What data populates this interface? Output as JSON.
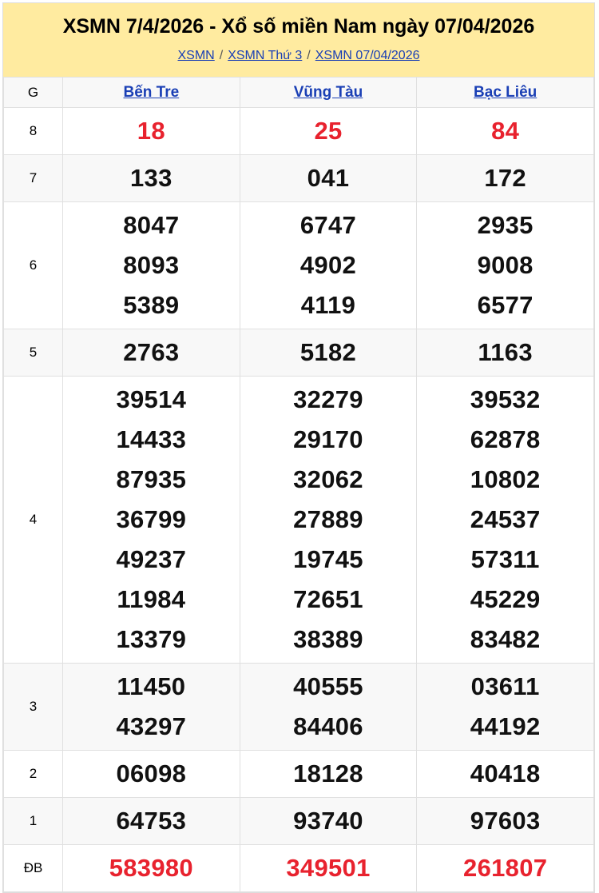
{
  "title": "XSMN 7/4/2026 - Xổ số miền Nam ngày 07/04/2026",
  "breadcrumb": [
    "XSMN",
    "XSMN Thứ 3",
    "XSMN 07/04/2026"
  ],
  "breadcrumb_separator": "/",
  "colors": {
    "header_bg": "#ffeba0",
    "link": "#1a3fb5",
    "highlight": "#e8222e"
  },
  "table": {
    "prize_header": "G",
    "provinces": [
      "Bến Tre",
      "Vũng Tàu",
      "Bạc Liêu"
    ],
    "rows": [
      {
        "prize": "8",
        "highlight": true,
        "values": [
          [
            "18"
          ],
          [
            "25"
          ],
          [
            "84"
          ]
        ]
      },
      {
        "prize": "7",
        "values": [
          [
            "133"
          ],
          [
            "041"
          ],
          [
            "172"
          ]
        ]
      },
      {
        "prize": "6",
        "values": [
          [
            "8047",
            "8093",
            "5389"
          ],
          [
            "6747",
            "4902",
            "4119"
          ],
          [
            "2935",
            "9008",
            "6577"
          ]
        ]
      },
      {
        "prize": "5",
        "values": [
          [
            "2763"
          ],
          [
            "5182"
          ],
          [
            "1163"
          ]
        ]
      },
      {
        "prize": "4",
        "values": [
          [
            "39514",
            "14433",
            "87935",
            "36799",
            "49237",
            "11984",
            "13379"
          ],
          [
            "32279",
            "29170",
            "32062",
            "27889",
            "19745",
            "72651",
            "38389"
          ],
          [
            "39532",
            "62878",
            "10802",
            "24537",
            "57311",
            "45229",
            "83482"
          ]
        ]
      },
      {
        "prize": "3",
        "values": [
          [
            "11450",
            "43297"
          ],
          [
            "40555",
            "84406"
          ],
          [
            "03611",
            "44192"
          ]
        ]
      },
      {
        "prize": "2",
        "values": [
          [
            "06098"
          ],
          [
            "18128"
          ],
          [
            "40418"
          ]
        ]
      },
      {
        "prize": "1",
        "values": [
          [
            "64753"
          ],
          [
            "93740"
          ],
          [
            "97603"
          ]
        ]
      },
      {
        "prize": "ĐB",
        "highlight": true,
        "values": [
          [
            "583980"
          ],
          [
            "349501"
          ],
          [
            "261807"
          ]
        ]
      }
    ]
  }
}
